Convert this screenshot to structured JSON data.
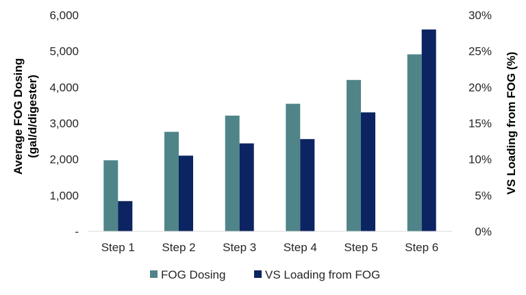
{
  "chart_data": {
    "type": "bar",
    "categories": [
      "Step 1",
      "Step 2",
      "Step 3",
      "Step 4",
      "Step 5",
      "Step 6"
    ],
    "series": [
      {
        "name": "FOG Dosing",
        "axis": "left",
        "color": "#4f8589",
        "values": [
          1970,
          2760,
          3210,
          3540,
          4200,
          4910
        ]
      },
      {
        "name": "VS Loading from FOG",
        "axis": "right",
        "color": "#0c2461",
        "values": [
          4.2,
          10.5,
          12.2,
          12.8,
          16.5,
          28.0
        ]
      }
    ],
    "ylabel": [
      "Average FOG Dosing",
      "(gal/d/digester)"
    ],
    "y2label": "VS Loading from FOG (%)",
    "ylim": [
      0,
      6000
    ],
    "y2lim": [
      0,
      30
    ],
    "y_ticks": [
      "-",
      "1,000",
      "2,000",
      "3,000",
      "4,000",
      "5,000",
      "6,000"
    ],
    "y2_ticks": [
      "0%",
      "5%",
      "10%",
      "15%",
      "20%",
      "25%",
      "30%"
    ],
    "grid": false,
    "legend_position": "bottom"
  }
}
